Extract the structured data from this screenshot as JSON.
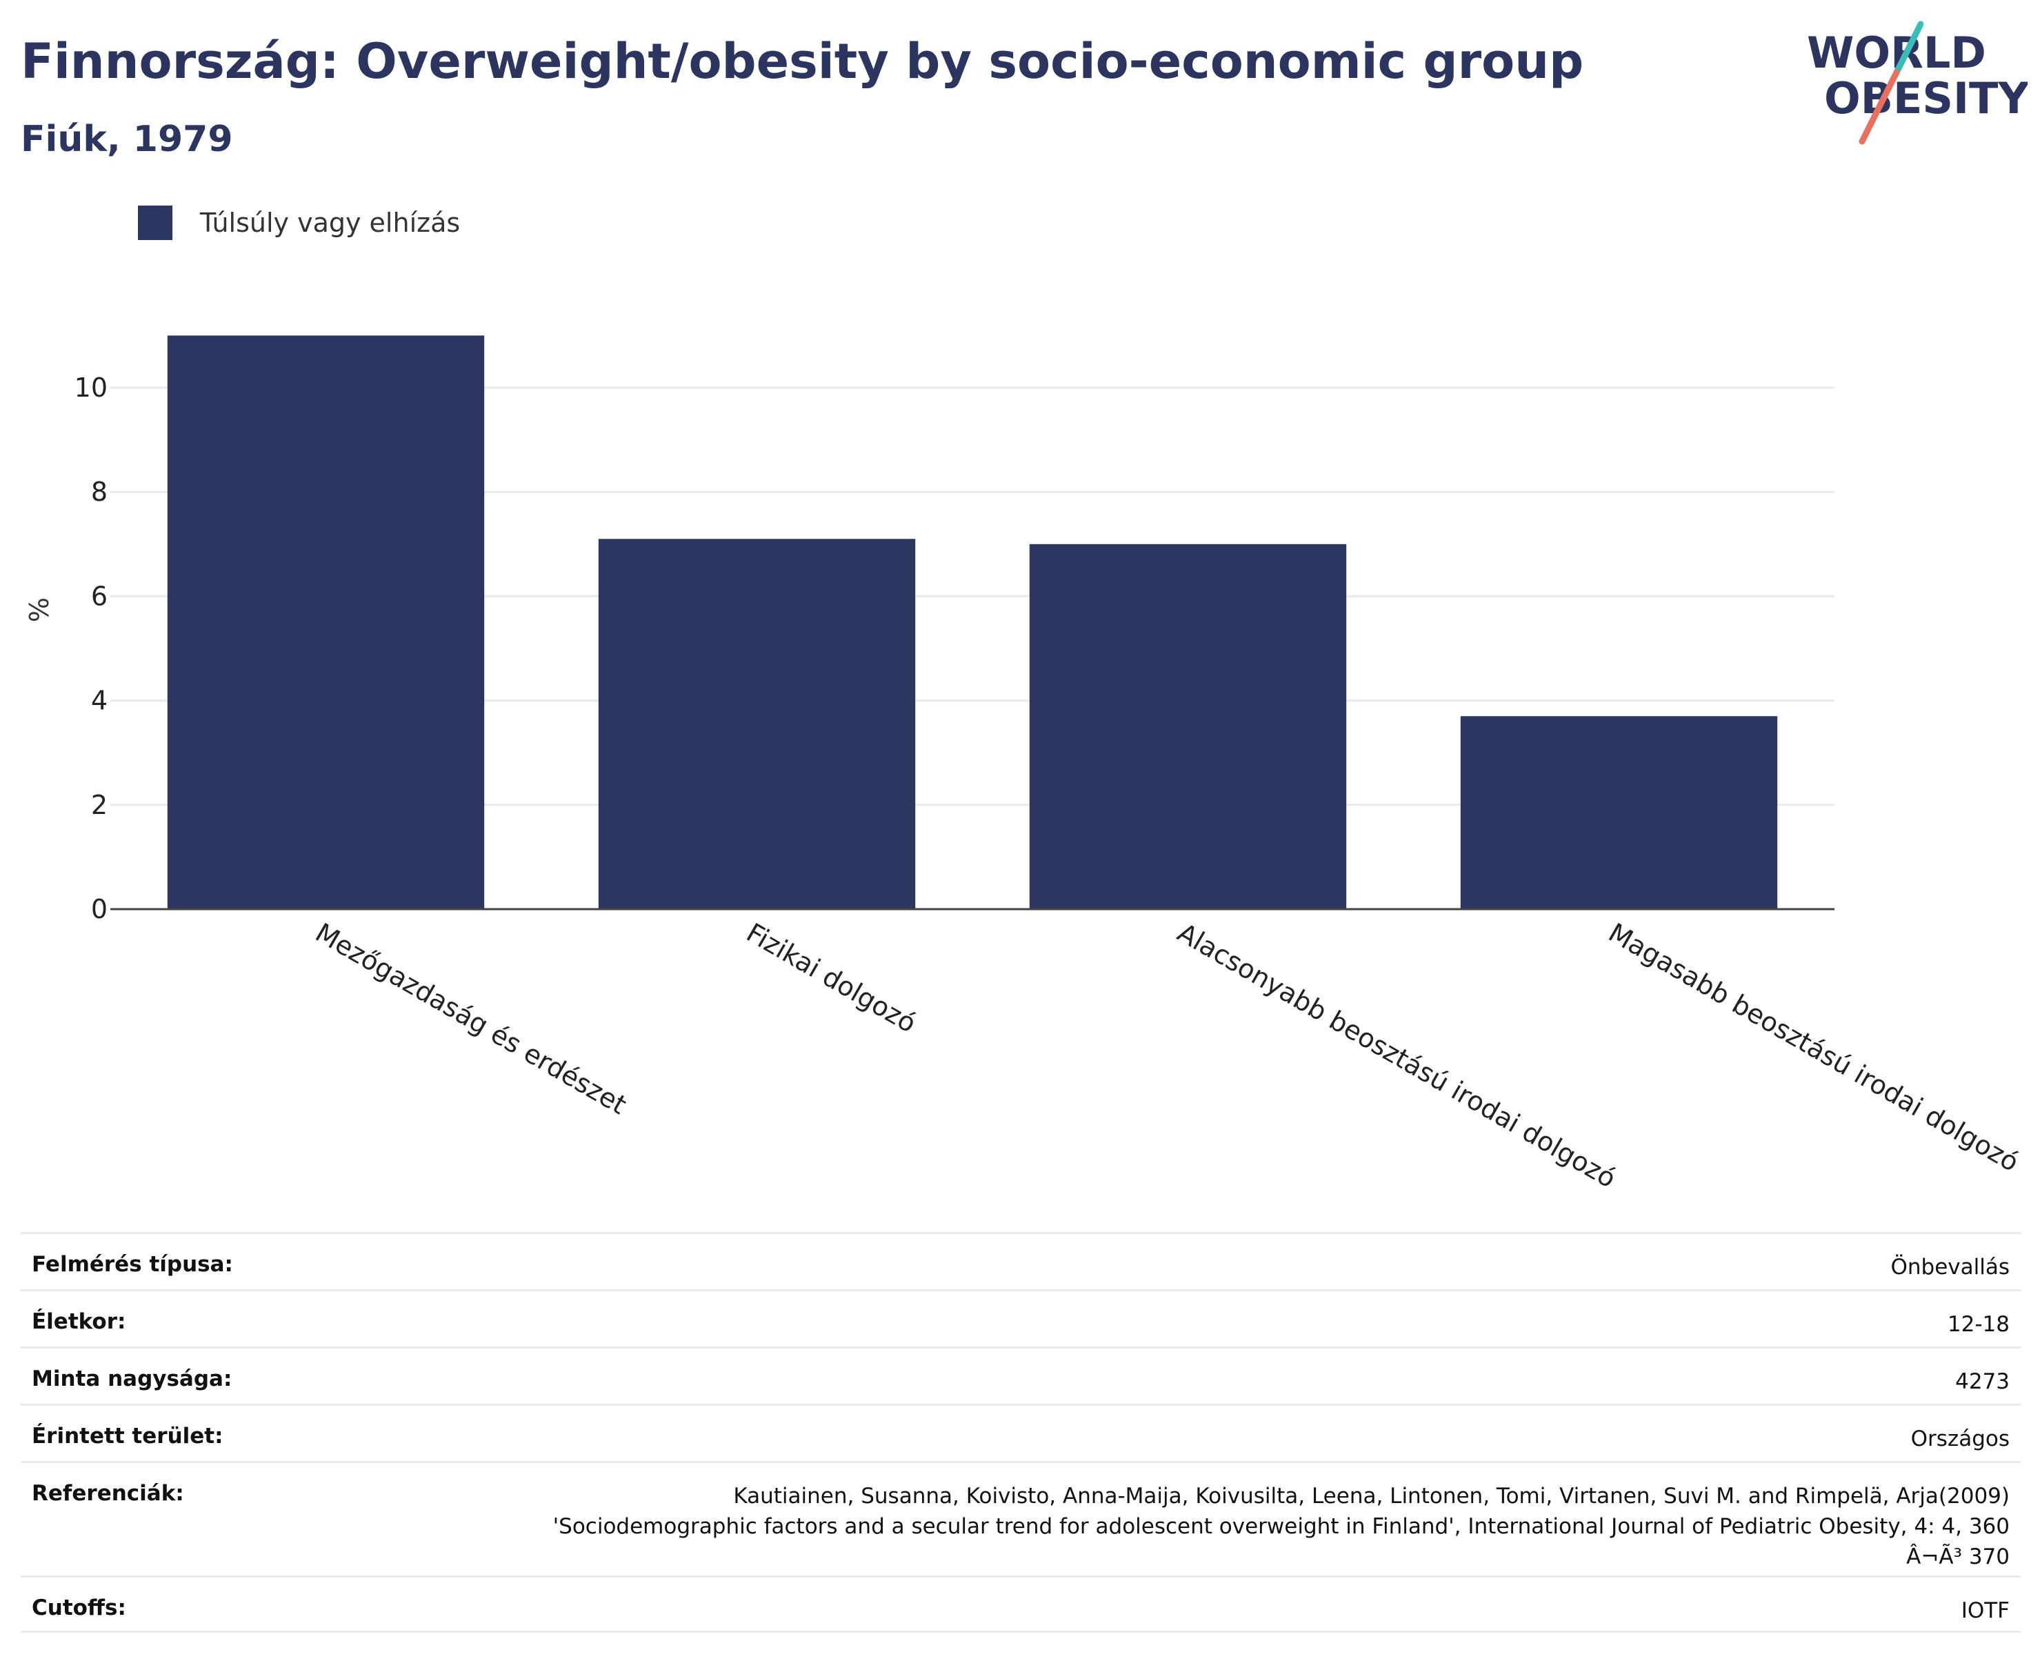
{
  "header": {
    "title": "Finnország: Overweight/obesity by socio-economic group",
    "subtitle": "Fiúk, 1979",
    "logo_text": [
      "WORLD",
      "OBESITY"
    ]
  },
  "colors": {
    "bar": "#2b3661",
    "text": "#2b3560",
    "logo_teal": "#3bbcb8",
    "logo_red": "#e8705e"
  },
  "chart_data": {
    "type": "bar",
    "categories": [
      "Mezőgazdaság és erdészet",
      "Fizikai dolgozó",
      "Alacsonyabb beosztású irodai dolgozó",
      "Magasabb beosztású irodai dolgozó"
    ],
    "series": [
      {
        "name": "Túlsúly vagy elhízás",
        "values": [
          11.0,
          7.1,
          7.0,
          3.7
        ]
      }
    ],
    "title": "Finnország: Overweight/obesity by socio-economic group",
    "subtitle": "Fiúk, 1979",
    "xlabel": "",
    "ylabel": "%",
    "ylim": [
      0,
      11
    ],
    "yticks": [
      0,
      2,
      4,
      6,
      8,
      10
    ],
    "grid": true,
    "legend_position": "top-left"
  },
  "meta": [
    {
      "key": "Felmérés típusa:",
      "value": "Önbevallás"
    },
    {
      "key": "Életkor:",
      "value": "12-18"
    },
    {
      "key": "Minta nagysága:",
      "value": "4273"
    },
    {
      "key": "Érintett terület:",
      "value": "Országos"
    },
    {
      "key": "Referenciák:",
      "value": "Kautiainen, Susanna, Koivisto, Anna-Maija, Koivusilta, Leena, Lintonen, Tomi, Virtanen, Suvi M. and Rimpelä, Arja(2009)\n'Sociodemographic factors and a secular trend for adolescent overweight in Finland', International Journal of Pediatric Obesity, 4: 4, 360\nÂ¬Ã³ 370"
    },
    {
      "key": "Cutoffs:",
      "value": "IOTF"
    }
  ]
}
